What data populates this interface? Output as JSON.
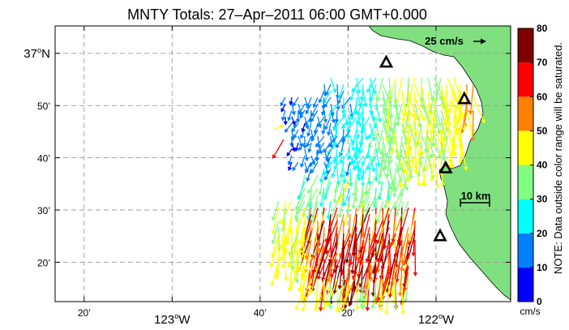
{
  "title": "MNTY Totals: 27–Apr–2011 06:00 GMT+0.000",
  "map": {
    "lat_labels": [
      {
        "lat": 37.0,
        "text": "37",
        "deg": "o",
        "suffix": "N"
      },
      {
        "lat": 36.8333,
        "text": "50’"
      },
      {
        "lat": 36.6667,
        "text": "40’"
      },
      {
        "lat": 36.5,
        "text": "30’"
      },
      {
        "lat": 36.3333,
        "text": "20’"
      }
    ],
    "lon_labels": [
      {
        "lon": -123.3333,
        "text": "20’"
      },
      {
        "lon": -123.0,
        "text": "123",
        "deg": "o",
        "suffix": "W"
      },
      {
        "lon": -122.6667,
        "text": "40’"
      },
      {
        "lon": -122.3333,
        "text": "20’"
      },
      {
        "lon": -122.0,
        "text": "122",
        "deg": "o",
        "suffix": "W"
      }
    ],
    "lon_range": [
      -123.4433,
      -121.7175
    ],
    "lat_range": [
      36.2075,
      37.0875
    ],
    "speed_scale_label": "25 cm/s",
    "distance_scale_label": "10 km",
    "land_color": "#80e080",
    "stations": [
      {
        "lon": -122.1889,
        "lat": 36.9708
      },
      {
        "lon": -121.8929,
        "lat": 36.8542
      },
      {
        "lon": -121.9635,
        "lat": 36.6333
      },
      {
        "lon": -121.9847,
        "lat": 36.4167
      }
    ]
  },
  "colorbar": {
    "ticks": [
      "0",
      "10",
      "20",
      "30",
      "40",
      "50",
      "60",
      "70",
      "80"
    ],
    "colors": [
      "#0000ff",
      "#0080ff",
      "#00ffff",
      "#80ff80",
      "#ffff00",
      "#ff8000",
      "#ff0000",
      "#800000"
    ],
    "units": "cm/s",
    "note": "NOTE: Data outside color range will be saturated."
  }
}
